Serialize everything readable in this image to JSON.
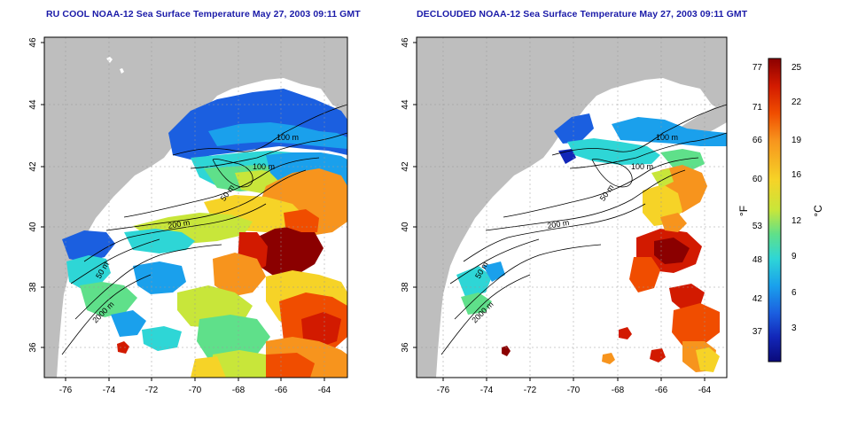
{
  "titles": {
    "left": "RU COOL NOAA-12 Sea Surface Temperature May 27, 2003 09:11 GMT",
    "right": "DECLOUDED NOAA-12 Sea Surface Temperature May 27, 2003 09:11 GMT"
  },
  "axes": {
    "lon_ticks": [
      "-76",
      "-74",
      "-72",
      "-70",
      "-68",
      "-66",
      "-64"
    ],
    "lat_ticks": [
      "36",
      "38",
      "40",
      "42",
      "44",
      "46"
    ],
    "lon_range": [
      -77.3,
      -63.1
    ],
    "lat_range": [
      35.0,
      46.0
    ]
  },
  "contours": {
    "left": [
      "100 m",
      "100 m",
      "50 m",
      "200 m",
      "50 m",
      "2000 m"
    ],
    "right": [
      "100 m",
      "100 m",
      "50 m",
      "200 m",
      "50 m",
      "2000 m"
    ]
  },
  "colorbar": {
    "f_label": "°F",
    "c_label": "°C",
    "f_ticks": [
      "77",
      "71",
      "66",
      "60",
      "53",
      "48",
      "42",
      "37"
    ],
    "c_ticks": [
      "25",
      "22",
      "19",
      "16",
      "12",
      "9",
      "6",
      "3"
    ],
    "colors": [
      "#8b0000",
      "#d21a00",
      "#f04d00",
      "#f7941d",
      "#f6d327",
      "#c8e63a",
      "#5fe08a",
      "#2ed6d6",
      "#1aa0ec",
      "#1b5fe0",
      "#1226b8",
      "#0a0a7a"
    ]
  },
  "colors": {
    "land": "#bebebe",
    "title": "#1a1aa8",
    "sea_bg": "#ffffff"
  }
}
